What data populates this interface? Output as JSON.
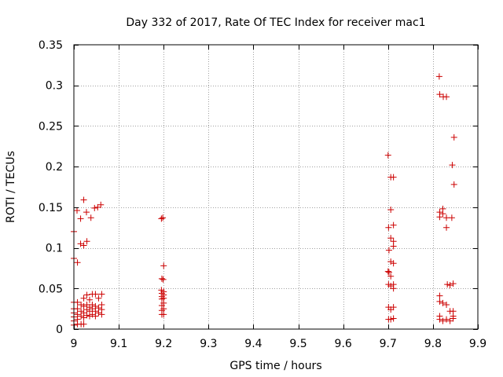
{
  "chart_data": {
    "type": "scatter",
    "title": "Day 332 of 2017, Rate Of TEC Index for receiver mac1",
    "xlabel": "GPS time / hours",
    "ylabel": "ROTI / TECUs",
    "xlim": [
      9.0,
      9.9
    ],
    "ylim": [
      0.0,
      0.35
    ],
    "x_ticks": [
      "9",
      "9.1",
      "9.2",
      "9.3",
      "9.4",
      "9.5",
      "9.6",
      "9.7",
      "9.8",
      "9.9"
    ],
    "x_tick_values": [
      9.0,
      9.1,
      9.2,
      9.3,
      9.4,
      9.5,
      9.6,
      9.7,
      9.8,
      9.9
    ],
    "y_ticks": [
      "0",
      "0.05",
      "0.1",
      "0.15",
      "0.2",
      "0.25",
      "0.3",
      "0.35"
    ],
    "y_tick_values": [
      0.0,
      0.05,
      0.1,
      0.15,
      0.2,
      0.25,
      0.3,
      0.35
    ],
    "grid": true,
    "marker": "+",
    "color": "#cc0000",
    "series": [
      {
        "name": "ROTI",
        "points": [
          [
            9.0,
            0.12
          ],
          [
            9.0,
            0.087
          ],
          [
            9.0,
            0.033
          ],
          [
            9.0,
            0.025
          ],
          [
            9.0,
            0.02
          ],
          [
            9.0,
            0.015
          ],
          [
            9.0,
            0.01
          ],
          [
            9.0,
            0.005
          ],
          [
            9.007,
            0.146
          ],
          [
            9.008,
            0.082
          ],
          [
            9.008,
            0.033
          ],
          [
            9.008,
            0.025
          ],
          [
            9.008,
            0.018
          ],
          [
            9.008,
            0.012
          ],
          [
            9.008,
            0.006
          ],
          [
            9.015,
            0.136
          ],
          [
            9.015,
            0.105
          ],
          [
            9.016,
            0.03
          ],
          [
            9.016,
            0.022
          ],
          [
            9.016,
            0.016
          ],
          [
            9.016,
            0.006
          ],
          [
            9.022,
            0.159
          ],
          [
            9.022,
            0.103
          ],
          [
            9.022,
            0.038
          ],
          [
            9.022,
            0.028
          ],
          [
            9.022,
            0.02
          ],
          [
            9.022,
            0.014
          ],
          [
            9.022,
            0.006
          ],
          [
            9.028,
            0.144
          ],
          [
            9.029,
            0.108
          ],
          [
            9.029,
            0.042
          ],
          [
            9.029,
            0.03
          ],
          [
            9.029,
            0.024
          ],
          [
            9.029,
            0.017
          ],
          [
            9.035,
            0.036
          ],
          [
            9.035,
            0.027
          ],
          [
            9.035,
            0.022
          ],
          [
            9.035,
            0.016
          ],
          [
            9.038,
            0.137
          ],
          [
            9.041,
            0.043
          ],
          [
            9.041,
            0.03
          ],
          [
            9.041,
            0.025
          ],
          [
            9.041,
            0.018
          ],
          [
            9.046,
            0.149
          ],
          [
            9.048,
            0.043
          ],
          [
            9.048,
            0.028
          ],
          [
            9.048,
            0.022
          ],
          [
            9.048,
            0.016
          ],
          [
            9.053,
            0.15
          ],
          [
            9.055,
            0.038
          ],
          [
            9.055,
            0.026
          ],
          [
            9.055,
            0.02
          ],
          [
            9.06,
            0.153
          ],
          [
            9.062,
            0.043
          ],
          [
            9.062,
            0.03
          ],
          [
            9.062,
            0.024
          ],
          [
            9.062,
            0.018
          ],
          [
            9.195,
            0.136
          ],
          [
            9.198,
            0.137
          ],
          [
            9.196,
            0.062
          ],
          [
            9.199,
            0.061
          ],
          [
            9.2,
            0.078
          ],
          [
            9.195,
            0.048
          ],
          [
            9.196,
            0.044
          ],
          [
            9.196,
            0.04
          ],
          [
            9.196,
            0.037
          ],
          [
            9.196,
            0.029
          ],
          [
            9.196,
            0.023
          ],
          [
            9.196,
            0.018
          ],
          [
            9.2,
            0.046
          ],
          [
            9.2,
            0.042
          ],
          [
            9.2,
            0.038
          ],
          [
            9.2,
            0.032
          ],
          [
            9.2,
            0.025
          ],
          [
            9.2,
            0.018
          ],
          [
            9.7,
            0.214
          ],
          [
            9.701,
            0.125
          ],
          [
            9.702,
            0.097
          ],
          [
            9.7,
            0.071
          ],
          [
            9.702,
            0.07
          ],
          [
            9.701,
            0.055
          ],
          [
            9.701,
            0.027
          ],
          [
            9.701,
            0.012
          ],
          [
            9.706,
            0.187
          ],
          [
            9.706,
            0.147
          ],
          [
            9.706,
            0.112
          ],
          [
            9.706,
            0.083
          ],
          [
            9.706,
            0.065
          ],
          [
            9.706,
            0.053
          ],
          [
            9.706,
            0.024
          ],
          [
            9.706,
            0.012
          ],
          [
            9.712,
            0.187
          ],
          [
            9.712,
            0.128
          ],
          [
            9.712,
            0.108
          ],
          [
            9.712,
            0.102
          ],
          [
            9.712,
            0.081
          ],
          [
            9.712,
            0.055
          ],
          [
            9.712,
            0.05
          ],
          [
            9.712,
            0.027
          ],
          [
            9.712,
            0.013
          ],
          [
            9.814,
            0.311
          ],
          [
            9.815,
            0.289
          ],
          [
            9.823,
            0.286
          ],
          [
            9.83,
            0.286
          ],
          [
            9.847,
            0.236
          ],
          [
            9.843,
            0.202
          ],
          [
            9.847,
            0.178
          ],
          [
            9.815,
            0.144
          ],
          [
            9.815,
            0.138
          ],
          [
            9.822,
            0.148
          ],
          [
            9.822,
            0.142
          ],
          [
            9.83,
            0.137
          ],
          [
            9.842,
            0.137
          ],
          [
            9.83,
            0.125
          ],
          [
            9.832,
            0.055
          ],
          [
            9.838,
            0.054
          ],
          [
            9.845,
            0.056
          ],
          [
            9.815,
            0.041
          ],
          [
            9.815,
            0.034
          ],
          [
            9.822,
            0.032
          ],
          [
            9.83,
            0.03
          ],
          [
            9.838,
            0.022
          ],
          [
            9.845,
            0.022
          ],
          [
            9.845,
            0.016
          ],
          [
            9.815,
            0.016
          ],
          [
            9.815,
            0.012
          ],
          [
            9.822,
            0.01
          ],
          [
            9.83,
            0.012
          ],
          [
            9.838,
            0.01
          ],
          [
            9.845,
            0.013
          ]
        ]
      }
    ]
  }
}
